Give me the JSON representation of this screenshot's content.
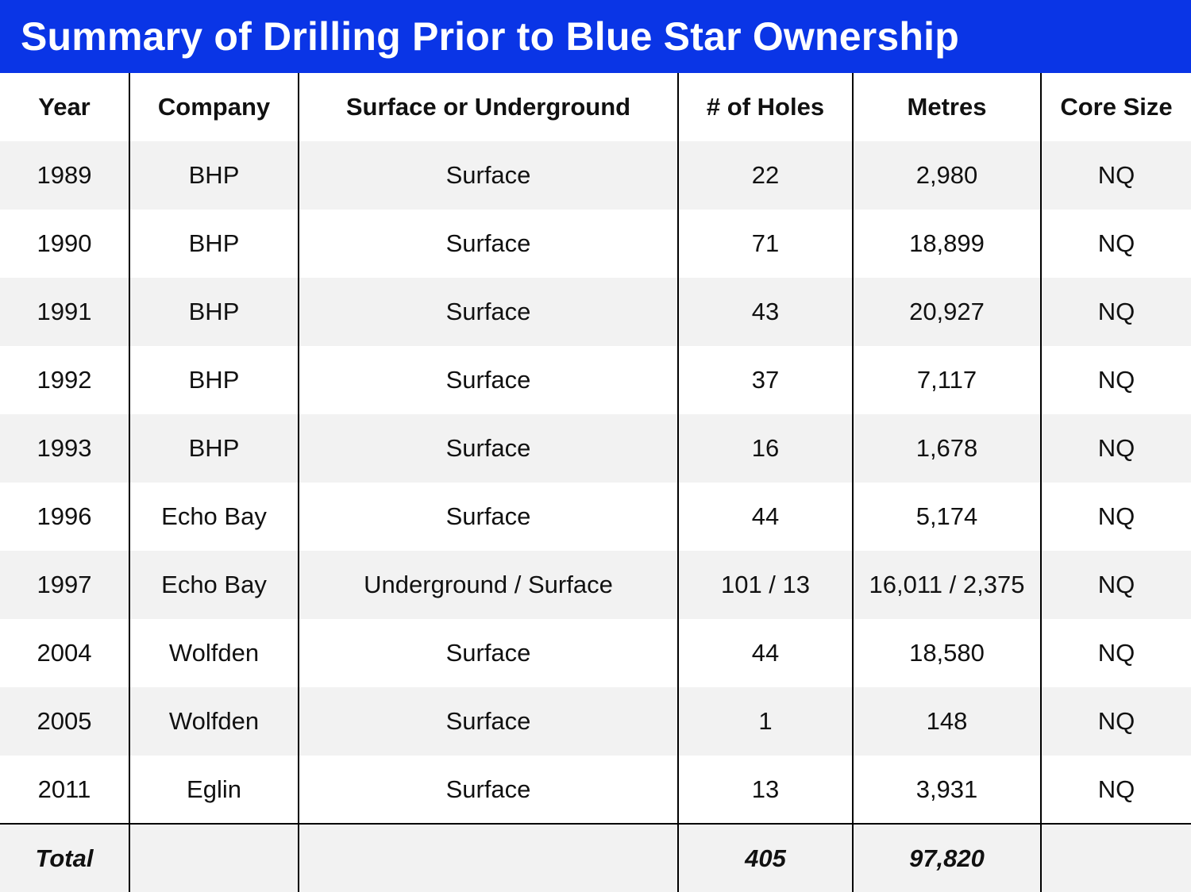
{
  "title": "Summary of Drilling Prior to Blue Star Ownership",
  "colors": {
    "title_background": "#0a35e6",
    "title_text": "#ffffff",
    "stripe_row": "#f2f2f2",
    "white_row": "#ffffff",
    "grid_lines": "#000000"
  },
  "table": {
    "headers": [
      "Year",
      "Company",
      "Surface or Underground",
      "# of Holes",
      "Metres",
      "Core Size"
    ],
    "rows": [
      [
        "1989",
        "BHP",
        "Surface",
        "22",
        "2,980",
        "NQ"
      ],
      [
        "1990",
        "BHP",
        "Surface",
        "71",
        "18,899",
        "NQ"
      ],
      [
        "1991",
        "BHP",
        "Surface",
        "43",
        "20,927",
        "NQ"
      ],
      [
        "1992",
        "BHP",
        "Surface",
        "37",
        "7,117",
        "NQ"
      ],
      [
        "1993",
        "BHP",
        "Surface",
        "16",
        "1,678",
        "NQ"
      ],
      [
        "1996",
        "Echo Bay",
        "Surface",
        "44",
        "5,174",
        "NQ"
      ],
      [
        "1997",
        "Echo Bay",
        "Underground / Surface",
        "101 / 13",
        "16,011 / 2,375",
        "NQ"
      ],
      [
        "2004",
        "Wolfden",
        "Surface",
        "44",
        "18,580",
        "NQ"
      ],
      [
        "2005",
        "Wolfden",
        "Surface",
        "1",
        "148",
        "NQ"
      ],
      [
        "2011",
        "Eglin",
        "Surface",
        "13",
        "3,931",
        "NQ"
      ]
    ],
    "total": {
      "label": "Total",
      "company": "",
      "surface_or_underground": "",
      "holes": "405",
      "metres": "97,820",
      "core_size": ""
    }
  }
}
